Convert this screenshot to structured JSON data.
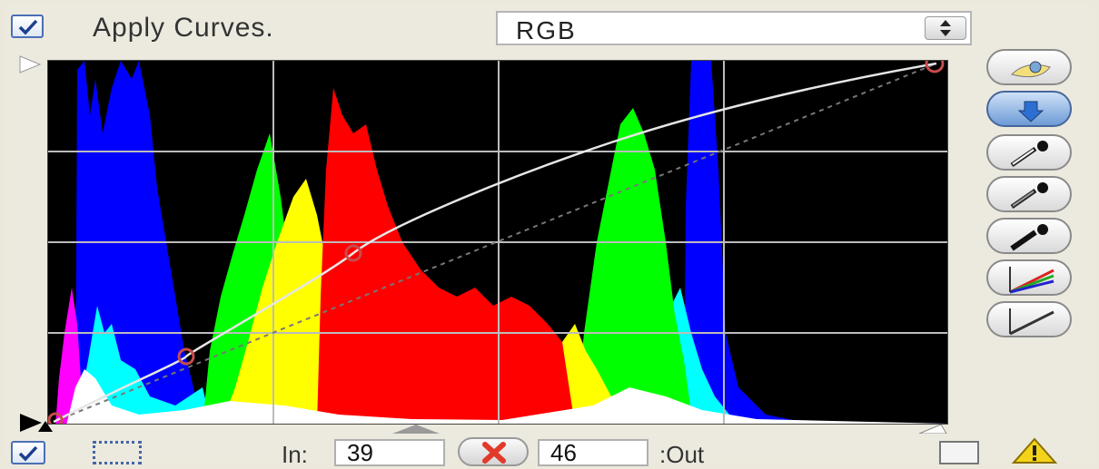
{
  "top": {
    "apply_label": "Apply Curves.",
    "apply_checked": true,
    "channel": "RGB"
  },
  "tools": [
    {
      "name": "eye-icon",
      "active": false
    },
    {
      "name": "arrow-icon",
      "active": true
    },
    {
      "name": "white-eyedropper-icon",
      "active": false
    },
    {
      "name": "gray-eyedropper-icon",
      "active": false
    },
    {
      "name": "black-eyedropper-icon",
      "active": false
    },
    {
      "name": "color-curves-icon",
      "active": false
    },
    {
      "name": "linear-curve-icon",
      "active": false
    }
  ],
  "bottom": {
    "in_label": "In:",
    "in_value": "39",
    "out_value": "46",
    "out_label": ":Out"
  },
  "colors": {
    "graph_bg": "#000000",
    "accent": "#4a6fb5"
  }
}
